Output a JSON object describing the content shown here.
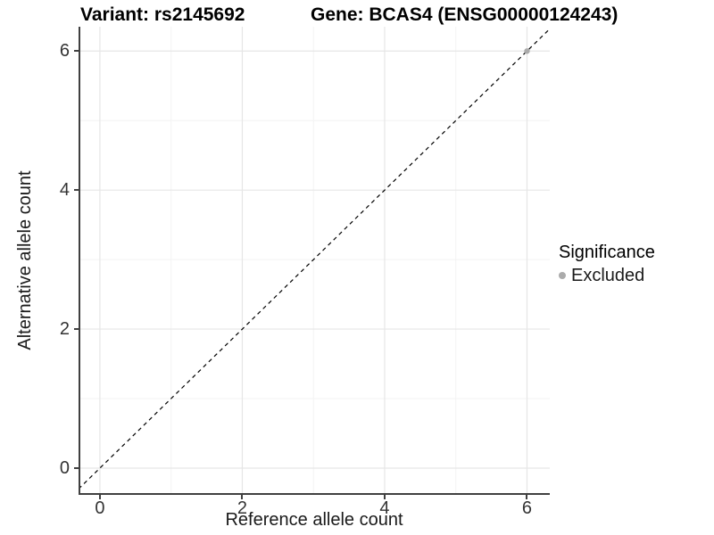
{
  "chart_data": {
    "type": "scatter",
    "title_left": "Variant: rs2145692",
    "title_right": "Gene: BCAS4 (ENSG00000124243)",
    "xlabel": "Reference allele count",
    "ylabel": "Alternative allele count",
    "x_ticks": [
      0,
      2,
      4,
      6
    ],
    "y_ticks": [
      0,
      2,
      4,
      6
    ],
    "x_minor_ticks": [
      1,
      3,
      5
    ],
    "y_minor_ticks": [
      1,
      3,
      5
    ],
    "xlim": [
      -0.3,
      6.32
    ],
    "ylim": [
      -0.385,
      6.35
    ],
    "grid": true,
    "points": [
      {
        "x": 6,
        "y": 6,
        "series": "Excluded"
      }
    ],
    "reference_line": {
      "type": "identity",
      "slope": 1,
      "intercept": 0,
      "style": "dashed",
      "color": "#000000"
    },
    "legend": {
      "title": "Significance",
      "position": "right",
      "entries": [
        {
          "label": "Excluded",
          "color": "#ababab",
          "marker": "circle"
        }
      ]
    },
    "colors": {
      "point": "#ababab",
      "grid_major": "#e6e6e6",
      "grid_minor": "#f3f3f3",
      "axis": "#404040",
      "dashed_line": "#000000",
      "text": "#1a1a1a"
    }
  }
}
